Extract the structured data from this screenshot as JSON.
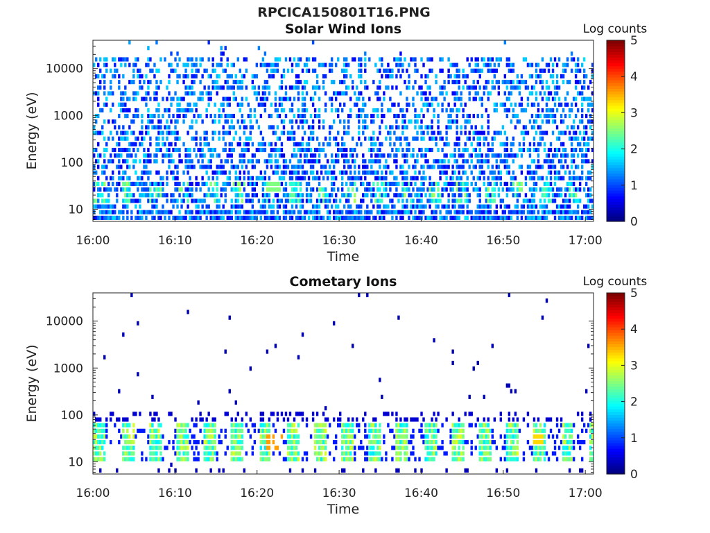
{
  "figure": {
    "filename_title": "RPCICA150801T16.PNG"
  },
  "chart_data": [
    {
      "type": "heatmap",
      "title": "Solar Wind Ions",
      "xlabel": "Time",
      "ylabel": "Energy (eV)",
      "x_tick_labels": [
        "16:00",
        "16:10",
        "16:20",
        "16:30",
        "16:40",
        "16:50",
        "17:00"
      ],
      "xlim": [
        "16:00",
        "17:01"
      ],
      "y_tick_labels": [
        "10",
        "100",
        "1000",
        "10000"
      ],
      "ylim": [
        5.5,
        40000
      ],
      "y_scale": "log",
      "colorbar": {
        "label": "Log counts",
        "range": [
          0,
          5
        ],
        "tick_labels": [
          "0",
          "1",
          "2",
          "3",
          "4",
          "5"
        ],
        "colormap": "jet"
      },
      "description_values": {
        "background_level_log_counts": 0.3,
        "peak_energy_eV_approx": 30,
        "peak_log_counts_approx": 2.5,
        "peak_time_approx": "16:22"
      }
    },
    {
      "type": "heatmap",
      "title": "Cometary Ions",
      "xlabel": "Time",
      "ylabel": "Energy (eV)",
      "x_tick_labels": [
        "16:00",
        "16:10",
        "16:20",
        "16:30",
        "16:40",
        "16:50",
        "17:00"
      ],
      "xlim": [
        "16:00",
        "17:01"
      ],
      "y_tick_labels": [
        "10",
        "100",
        "1000",
        "10000"
      ],
      "ylim": [
        5.5,
        40000
      ],
      "y_scale": "log",
      "colorbar": {
        "label": "Log counts",
        "range": [
          0,
          5
        ],
        "tick_labels": [
          "0",
          "1",
          "2",
          "3",
          "4",
          "5"
        ],
        "colormap": "jet"
      },
      "description_values": {
        "band_energy_range_eV_approx": [
          10,
          60
        ],
        "band_log_counts_approx": 2.5,
        "peak_log_counts_approx": 3.6,
        "peak_time_approx": "16:22",
        "peak_energy_eV_approx": 25
      }
    }
  ]
}
